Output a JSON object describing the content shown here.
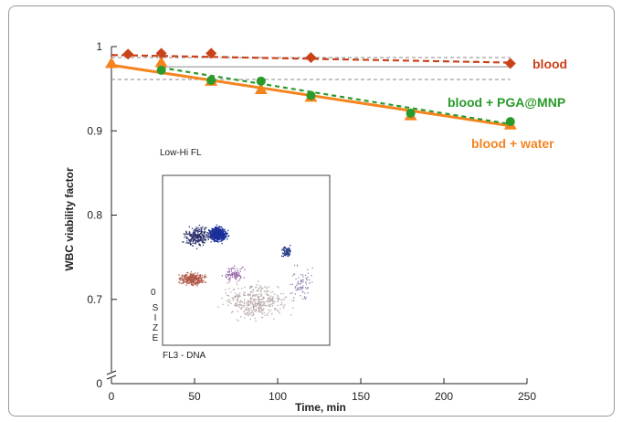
{
  "colors": {
    "blood": "#c9421a",
    "pga_mnp": "#2a9a2a",
    "water": "#f5841f",
    "axis": "#222222",
    "ref_line": "#8a8a8a"
  },
  "chart_data": {
    "type": "line",
    "xlabel": "Time, min",
    "ylabel": "WBC viability factor",
    "xlim": [
      0,
      250
    ],
    "ylim_display": [
      0.6,
      1.0
    ],
    "y_axis_break": true,
    "x_ticks": [
      "0",
      "50",
      "100",
      "150",
      "200",
      "250"
    ],
    "y_ticks": [
      {
        "value": 0.6,
        "label": "0"
      },
      {
        "value": 0.7,
        "label": "0.7"
      },
      {
        "value": 0.8,
        "label": "0.8"
      },
      {
        "value": 0.9,
        "label": "0.9"
      },
      {
        "value": 1.0,
        "label": "1"
      }
    ],
    "series": [
      {
        "name": "blood",
        "marker": "diamond",
        "color": "#c9421a",
        "x": [
          10,
          30,
          60,
          120,
          240
        ],
        "y": [
          0.991,
          0.992,
          0.992,
          0.987,
          0.98
        ],
        "fit": [
          [
            0,
            0.99
          ],
          [
            240,
            0.981
          ]
        ]
      },
      {
        "name": "blood + PGA@MNP",
        "marker": "circle",
        "color": "#2a9a2a",
        "x": [
          30,
          60,
          90,
          120,
          180,
          240
        ],
        "y": [
          0.972,
          0.96,
          0.959,
          0.942,
          0.921,
          0.911
        ],
        "fit": [
          [
            30,
            0.975
          ],
          [
            240,
            0.908
          ]
        ]
      },
      {
        "name": "blood + water",
        "marker": "triangle",
        "color": "#f5841f",
        "x": [
          0,
          30,
          60,
          90,
          120,
          180,
          240
        ],
        "y": [
          0.98,
          0.981,
          0.959,
          0.949,
          0.94,
          0.918,
          0.907
        ],
        "fit": [
          [
            0,
            0.978
          ],
          [
            240,
            0.906
          ]
        ]
      }
    ],
    "reference_lines": [
      {
        "style": "dashed",
        "y": 0.987,
        "x": [
          0,
          240
        ]
      },
      {
        "style": "solid",
        "y": 0.976,
        "x": [
          30,
          240
        ]
      },
      {
        "style": "dashed",
        "y": 0.961,
        "x": [
          0,
          240
        ]
      }
    ],
    "inset": {
      "title": "Low-Hi FL",
      "xlabel": "FL3 - DNA",
      "ylabel": "SIZE",
      "y_tick": "0"
    }
  }
}
